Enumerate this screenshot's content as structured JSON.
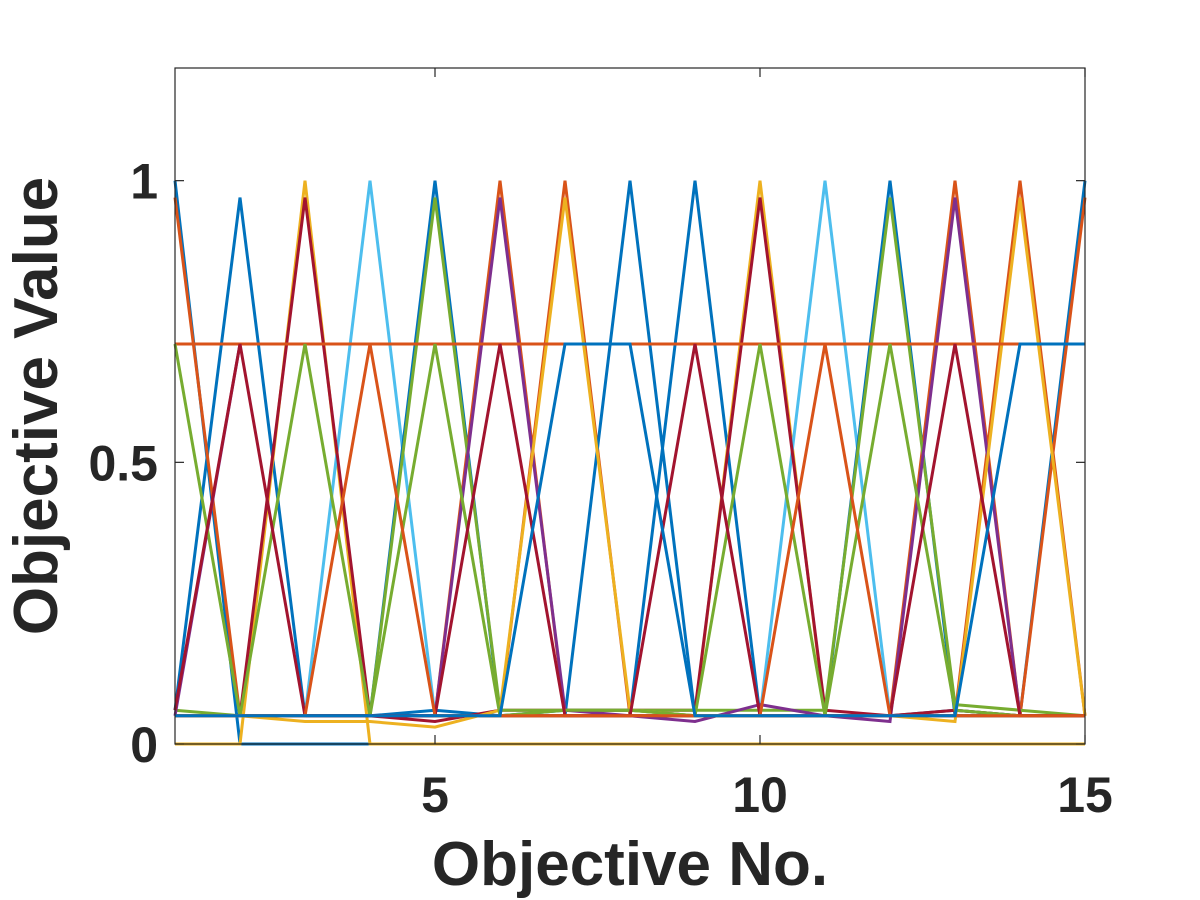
{
  "chart_data": {
    "type": "line",
    "title": "",
    "xlabel": "Objective No.",
    "ylabel": "Objective Value",
    "xlim": [
      1,
      15
    ],
    "ylim": [
      0,
      1.2
    ],
    "xticks": [
      5,
      10,
      15
    ],
    "xtick_labels": [
      "5",
      "10",
      "15"
    ],
    "yticks": [
      0,
      0.5,
      1
    ],
    "ytick_labels": [
      "0",
      "0.5",
      "1"
    ],
    "grid": false,
    "legend": "none",
    "palette": [
      "#0072BD",
      "#D95319",
      "#EDB120",
      "#7E2F8E",
      "#77AC30",
      "#4DBEEE",
      "#A2142F"
    ],
    "x": [
      1,
      2,
      3,
      4,
      5,
      6,
      7,
      8,
      9,
      10,
      11,
      12,
      13,
      14,
      15
    ],
    "series": [
      {
        "color": "#0072BD",
        "values": [
          1,
          0,
          0,
          0,
          0,
          0,
          0,
          0,
          0,
          0,
          0,
          0,
          0,
          0,
          0
        ]
      },
      {
        "color": "#0072BD",
        "values": [
          0.06,
          0.97,
          0.05,
          0.05,
          0.06,
          0.05,
          0.06,
          0.06,
          0.05,
          0.05,
          0.05,
          0.05,
          0.06,
          0.05,
          0.05
        ]
      },
      {
        "color": "#EDB120",
        "values": [
          0,
          0,
          1,
          0,
          0,
          0,
          0,
          0,
          0,
          0,
          0,
          0,
          0,
          0,
          0
        ]
      },
      {
        "color": "#4DBEEE",
        "values": [
          0.05,
          0.05,
          0.05,
          1,
          0.05,
          0.05,
          0.05,
          0.05,
          0.05,
          0.05,
          0.05,
          0.05,
          0.05,
          0.05,
          0.05
        ]
      },
      {
        "color": "#0072BD",
        "values": [
          0.05,
          0.05,
          0.05,
          0.05,
          1,
          0.05,
          0.05,
          0.05,
          0.05,
          0.05,
          0.05,
          0.05,
          0.05,
          0.05,
          0.05
        ]
      },
      {
        "color": "#D95319",
        "values": [
          0.05,
          0.05,
          0.05,
          0.05,
          0.05,
          1,
          0.05,
          0.05,
          0.05,
          0.05,
          0.05,
          0.05,
          0.05,
          0.05,
          0.05
        ]
      },
      {
        "color": "#D95319",
        "values": [
          0.05,
          0.05,
          0.05,
          0.05,
          0.05,
          0.05,
          1,
          0.05,
          0.05,
          0.05,
          0.05,
          0.05,
          0.05,
          0.05,
          0.05
        ]
      },
      {
        "color": "#0072BD",
        "values": [
          0.05,
          0.05,
          0.05,
          0.05,
          0.05,
          0.05,
          0.05,
          1,
          0.05,
          0.05,
          0.05,
          0.05,
          0.05,
          0.05,
          0.05
        ]
      },
      {
        "color": "#0072BD",
        "values": [
          0.05,
          0.05,
          0.05,
          0.05,
          0.05,
          0.05,
          0.05,
          0.05,
          1,
          0.05,
          0.05,
          0.05,
          0.05,
          0.05,
          0.05
        ]
      },
      {
        "color": "#EDB120",
        "values": [
          0.05,
          0.05,
          0.05,
          0.05,
          0.05,
          0.05,
          0.05,
          0.05,
          0.05,
          1,
          0.05,
          0.05,
          0.05,
          0.05,
          0.05
        ]
      },
      {
        "color": "#4DBEEE",
        "values": [
          0.05,
          0.05,
          0.05,
          0.05,
          0.05,
          0.05,
          0.05,
          0.05,
          0.05,
          0.05,
          1,
          0.05,
          0.05,
          0.05,
          0.05
        ]
      },
      {
        "color": "#0072BD",
        "values": [
          0.05,
          0.05,
          0.05,
          0.05,
          0.05,
          0.05,
          0.05,
          0.05,
          0.05,
          0.05,
          0.05,
          1,
          0.05,
          0.05,
          0.05
        ]
      },
      {
        "color": "#D95319",
        "values": [
          0.05,
          0.05,
          0.05,
          0.05,
          0.05,
          0.05,
          0.05,
          0.05,
          0.05,
          0.05,
          0.05,
          0.05,
          1,
          0.05,
          0.05
        ]
      },
      {
        "color": "#D95319",
        "values": [
          0.05,
          0.05,
          0.05,
          0.05,
          0.05,
          0.05,
          0.05,
          0.05,
          0.05,
          0.05,
          0.05,
          0.05,
          0.05,
          1,
          0.05
        ]
      },
      {
        "color": "#0072BD",
        "values": [
          0.05,
          0.05,
          0.05,
          0.05,
          0.05,
          0.05,
          0.05,
          0.05,
          0.05,
          0.05,
          0.05,
          0.05,
          0.05,
          0.05,
          1
        ]
      },
      {
        "color": "#D95319",
        "values": [
          0.97,
          0.05,
          0.05,
          0.05,
          0.05,
          0.05,
          0.05,
          0.05,
          0.05,
          0.05,
          0.05,
          0.05,
          0.05,
          0.05,
          0.97
        ]
      },
      {
        "color": "#A2142F",
        "values": [
          0.05,
          0.05,
          0.97,
          0.05,
          0.04,
          0.06,
          0.06,
          0.06,
          0.06,
          0.97,
          0.06,
          0.05,
          0.06,
          0.05,
          0.05
        ]
      },
      {
        "color": "#77AC30",
        "values": [
          0.06,
          0.05,
          0.05,
          0.05,
          0.97,
          0.06,
          0.06,
          0.06,
          0.06,
          0.06,
          0.06,
          0.97,
          0.07,
          0.06,
          0.05
        ]
      },
      {
        "color": "#7E2F8E",
        "values": [
          0.05,
          0.05,
          0.05,
          0.05,
          0.05,
          0.97,
          0.06,
          0.05,
          0.04,
          0.07,
          0.05,
          0.04,
          0.97,
          0.05,
          0.05
        ]
      },
      {
        "color": "#EDB120",
        "values": [
          0.05,
          0.05,
          0.04,
          0.04,
          0.03,
          0.06,
          0.97,
          0.06,
          0.05,
          0.05,
          0.05,
          0.05,
          0.04,
          0.97,
          0.05
        ]
      },
      {
        "color": "#7E2F8E",
        "values": [
          0.05,
          0.71,
          0.71,
          0.71,
          0.71,
          0.71,
          0.71,
          0.71,
          0.71,
          0.71,
          0.71,
          0.71,
          0.71,
          0.71,
          0.71
        ]
      },
      {
        "color": "#A2142F",
        "values": [
          0.71,
          0.71,
          0.71,
          0.71,
          0.71,
          0.71,
          0.71,
          0.71,
          0.71,
          0.71,
          0.71,
          0.71,
          0.71,
          0.71,
          0.71
        ]
      },
      {
        "color": "#EDB120",
        "values": [
          0.71,
          0.71,
          0.71,
          0.71,
          0.71,
          0.71,
          0.71,
          0.71,
          0.71,
          0.71,
          0.71,
          0.71,
          0.71,
          0.71,
          0.71
        ]
      },
      {
        "color": "#D95319",
        "values": [
          0.71,
          0.71,
          0.71,
          0.71,
          0.71,
          0.71,
          0.71,
          0.71,
          0.71,
          0.71,
          0.71,
          0.71,
          0.71,
          0.71,
          0.71
        ]
      },
      {
        "color": "#77AC30",
        "values": [
          0.71,
          0.05,
          0.71,
          0.05,
          0.71,
          0.05,
          0.06,
          0.06,
          0.05,
          0.71,
          0.05,
          0.71,
          0.06,
          0.05,
          0.05
        ]
      },
      {
        "color": "#A2142F",
        "values": [
          0.06,
          0.71,
          0.05,
          0.05,
          0.05,
          0.71,
          0.05,
          0.05,
          0.71,
          0.05,
          0.05,
          0.05,
          0.71,
          0.05,
          0.05
        ]
      },
      {
        "color": "#D95319",
        "values": [
          0.05,
          0.05,
          0.05,
          0.71,
          0.05,
          0.05,
          0.05,
          0.05,
          0.05,
          0.05,
          0.71,
          0.05,
          0.05,
          0.05,
          0.05
        ]
      },
      {
        "color": "#0072BD",
        "values": [
          0.05,
          0.05,
          0.05,
          0.05,
          0.05,
          0.05,
          0.71,
          0.71,
          0.05,
          0.05,
          0.05,
          0.05,
          0.05,
          0.71,
          0.71
        ]
      }
    ]
  }
}
